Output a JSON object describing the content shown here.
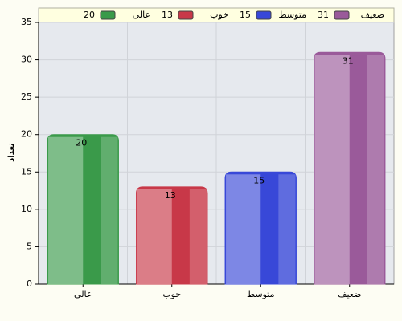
{
  "chart_data": {
    "type": "bar",
    "y_label": "تعداد",
    "categories": [
      "عالی",
      "خوب",
      "متوسط",
      "ضعیف"
    ],
    "values": [
      20,
      13,
      15,
      31
    ],
    "colors": [
      "#3a9a4a",
      "#c83848",
      "#3848d8",
      "#9a5a9a"
    ],
    "ylim": [
      0,
      35
    ],
    "yticks": [
      0,
      5,
      10,
      15,
      20,
      25,
      30,
      35
    ],
    "grid": true,
    "legend": "top"
  }
}
